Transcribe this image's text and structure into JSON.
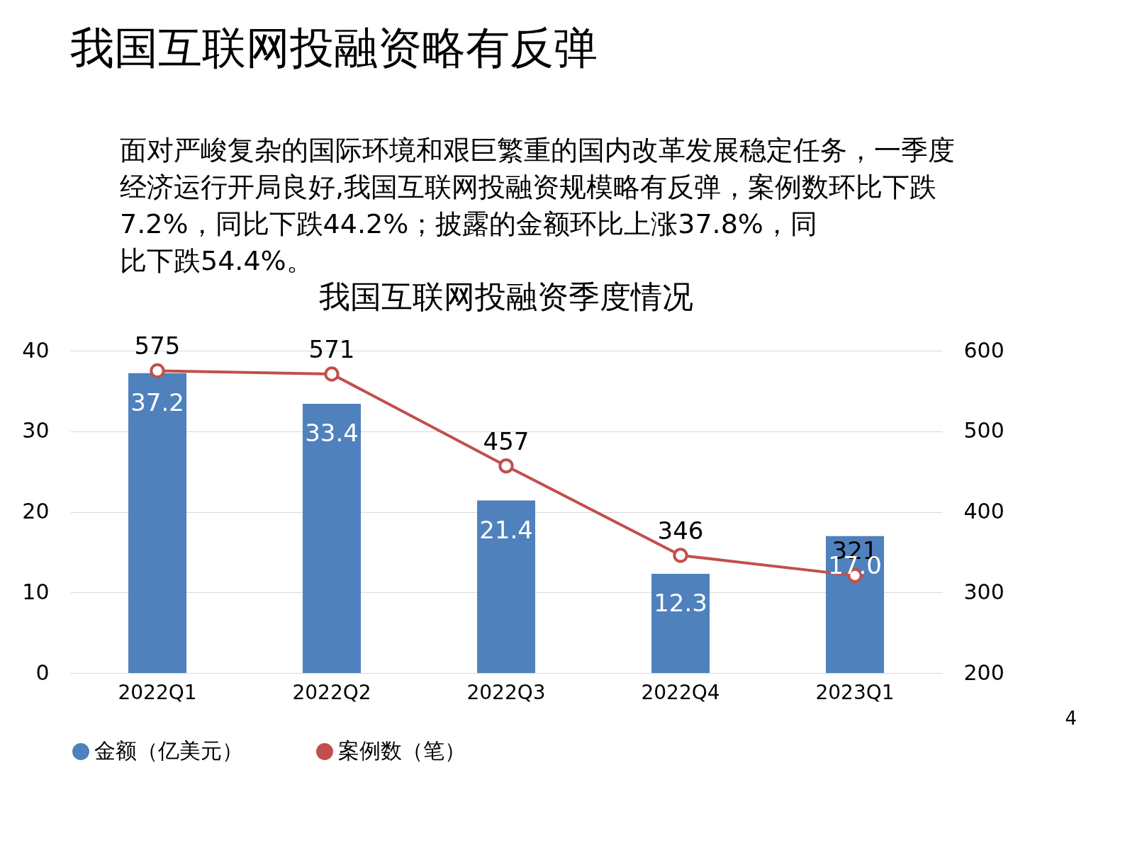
{
  "chart_data": {
    "type": "bar",
    "title": "我国互联网投融资季度情况",
    "categories": [
      "2022Q1",
      "2022Q2",
      "2022Q3",
      "2022Q4",
      "2023Q1"
    ],
    "series": [
      {
        "name": "金额（亿美元）",
        "color": "#4f81bd",
        "values": [
          37.2,
          33.4,
          21.4,
          12.3,
          17.0
        ],
        "value_labels": [
          "37.2",
          "33.4",
          "21.4",
          "12.3",
          "17.0"
        ]
      },
      {
        "name": "案例数（笔）",
        "type": "line",
        "axis": "y2",
        "color": "#c0504d",
        "values": [
          575,
          571,
          457,
          346,
          321
        ],
        "value_labels": [
          "575",
          "571",
          "457",
          "346",
          "321"
        ]
      }
    ],
    "ylim": [
      0,
      40
    ],
    "yticks": [
      0,
      10,
      20,
      30,
      40
    ],
    "y2lim": [
      200,
      600
    ],
    "y2ticks": [
      200,
      300,
      400,
      500,
      600
    ],
    "grid": "y",
    "legend": "bottom",
    "marker": "circle",
    "annotations": [
      "我国互联网投融资略有反弹",
      "面对严峻复杂的国际环境和艰巨繁重的国内改革发展稳定任务，一季度经济运行开局良好,我国互联网投融资规模略有反弹，案例数环比下跌7.2%，同比下跌44.2%；披露的金额环比上涨37.8%，同比下跌54.4%。",
      "4"
    ]
  }
}
